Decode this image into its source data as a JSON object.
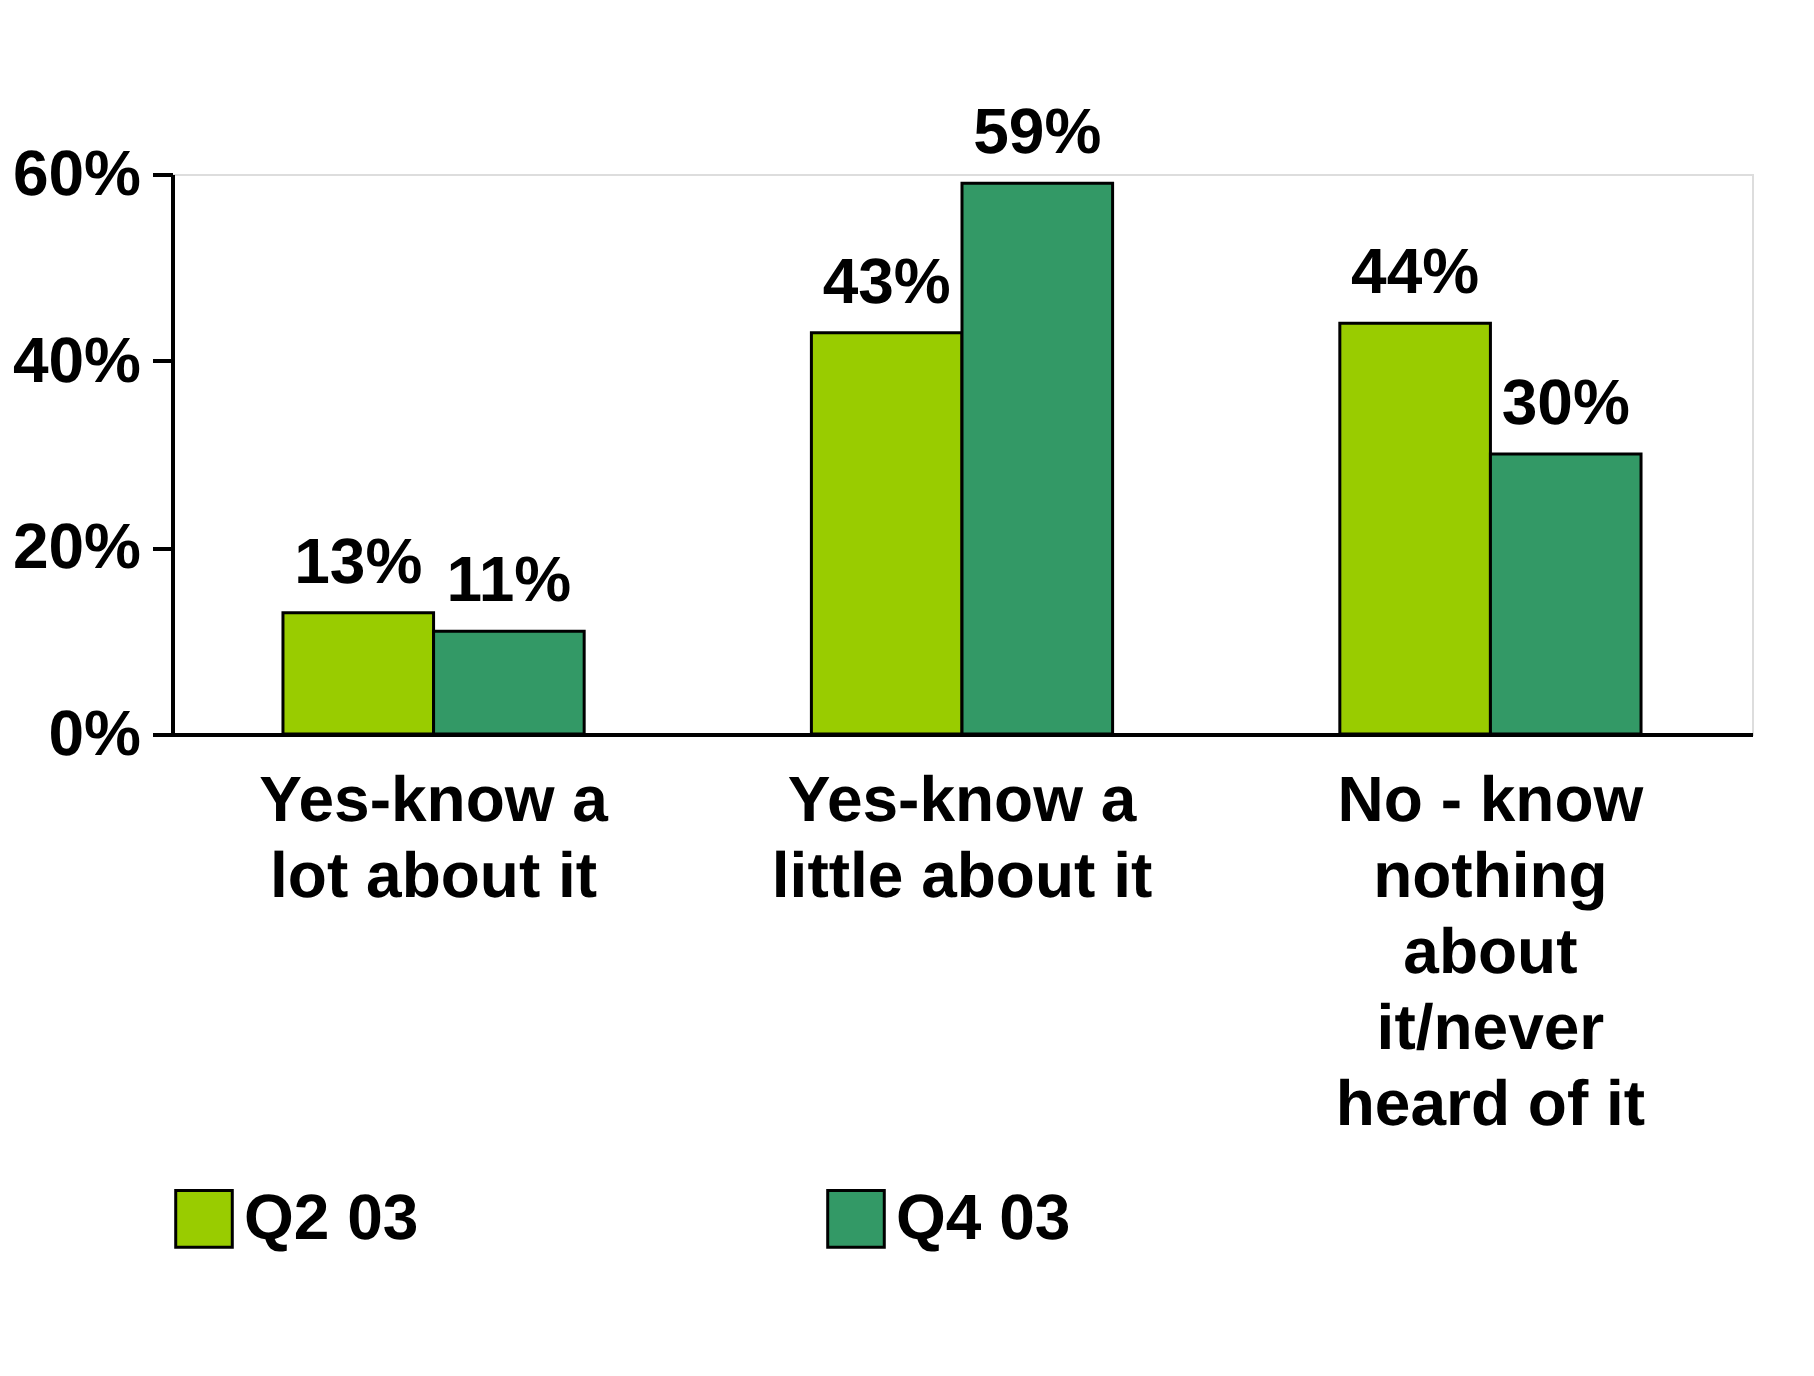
{
  "chart_data": {
    "type": "bar",
    "categories": [
      "Yes-know a lot about it",
      "Yes-know a little about it",
      "No - know nothing about it/never heard of it"
    ],
    "series": [
      {
        "name": "Q2 03",
        "color": "#99cc00",
        "values": [
          13,
          43,
          44
        ],
        "value_labels": [
          "13%",
          "43%",
          "44%"
        ]
      },
      {
        "name": "Q4 03",
        "color": "#339966",
        "values": [
          11,
          59,
          30
        ],
        "value_labels": [
          "11%",
          "59%",
          "30%"
        ]
      }
    ],
    "ylim": [
      0,
      60
    ],
    "yticks": [
      {
        "value": 0,
        "label": "0%"
      },
      {
        "value": 20,
        "label": "20%"
      },
      {
        "value": 40,
        "label": "40%"
      },
      {
        "value": 60,
        "label": "60%"
      }
    ],
    "grid": false,
    "legend": "bottom"
  }
}
